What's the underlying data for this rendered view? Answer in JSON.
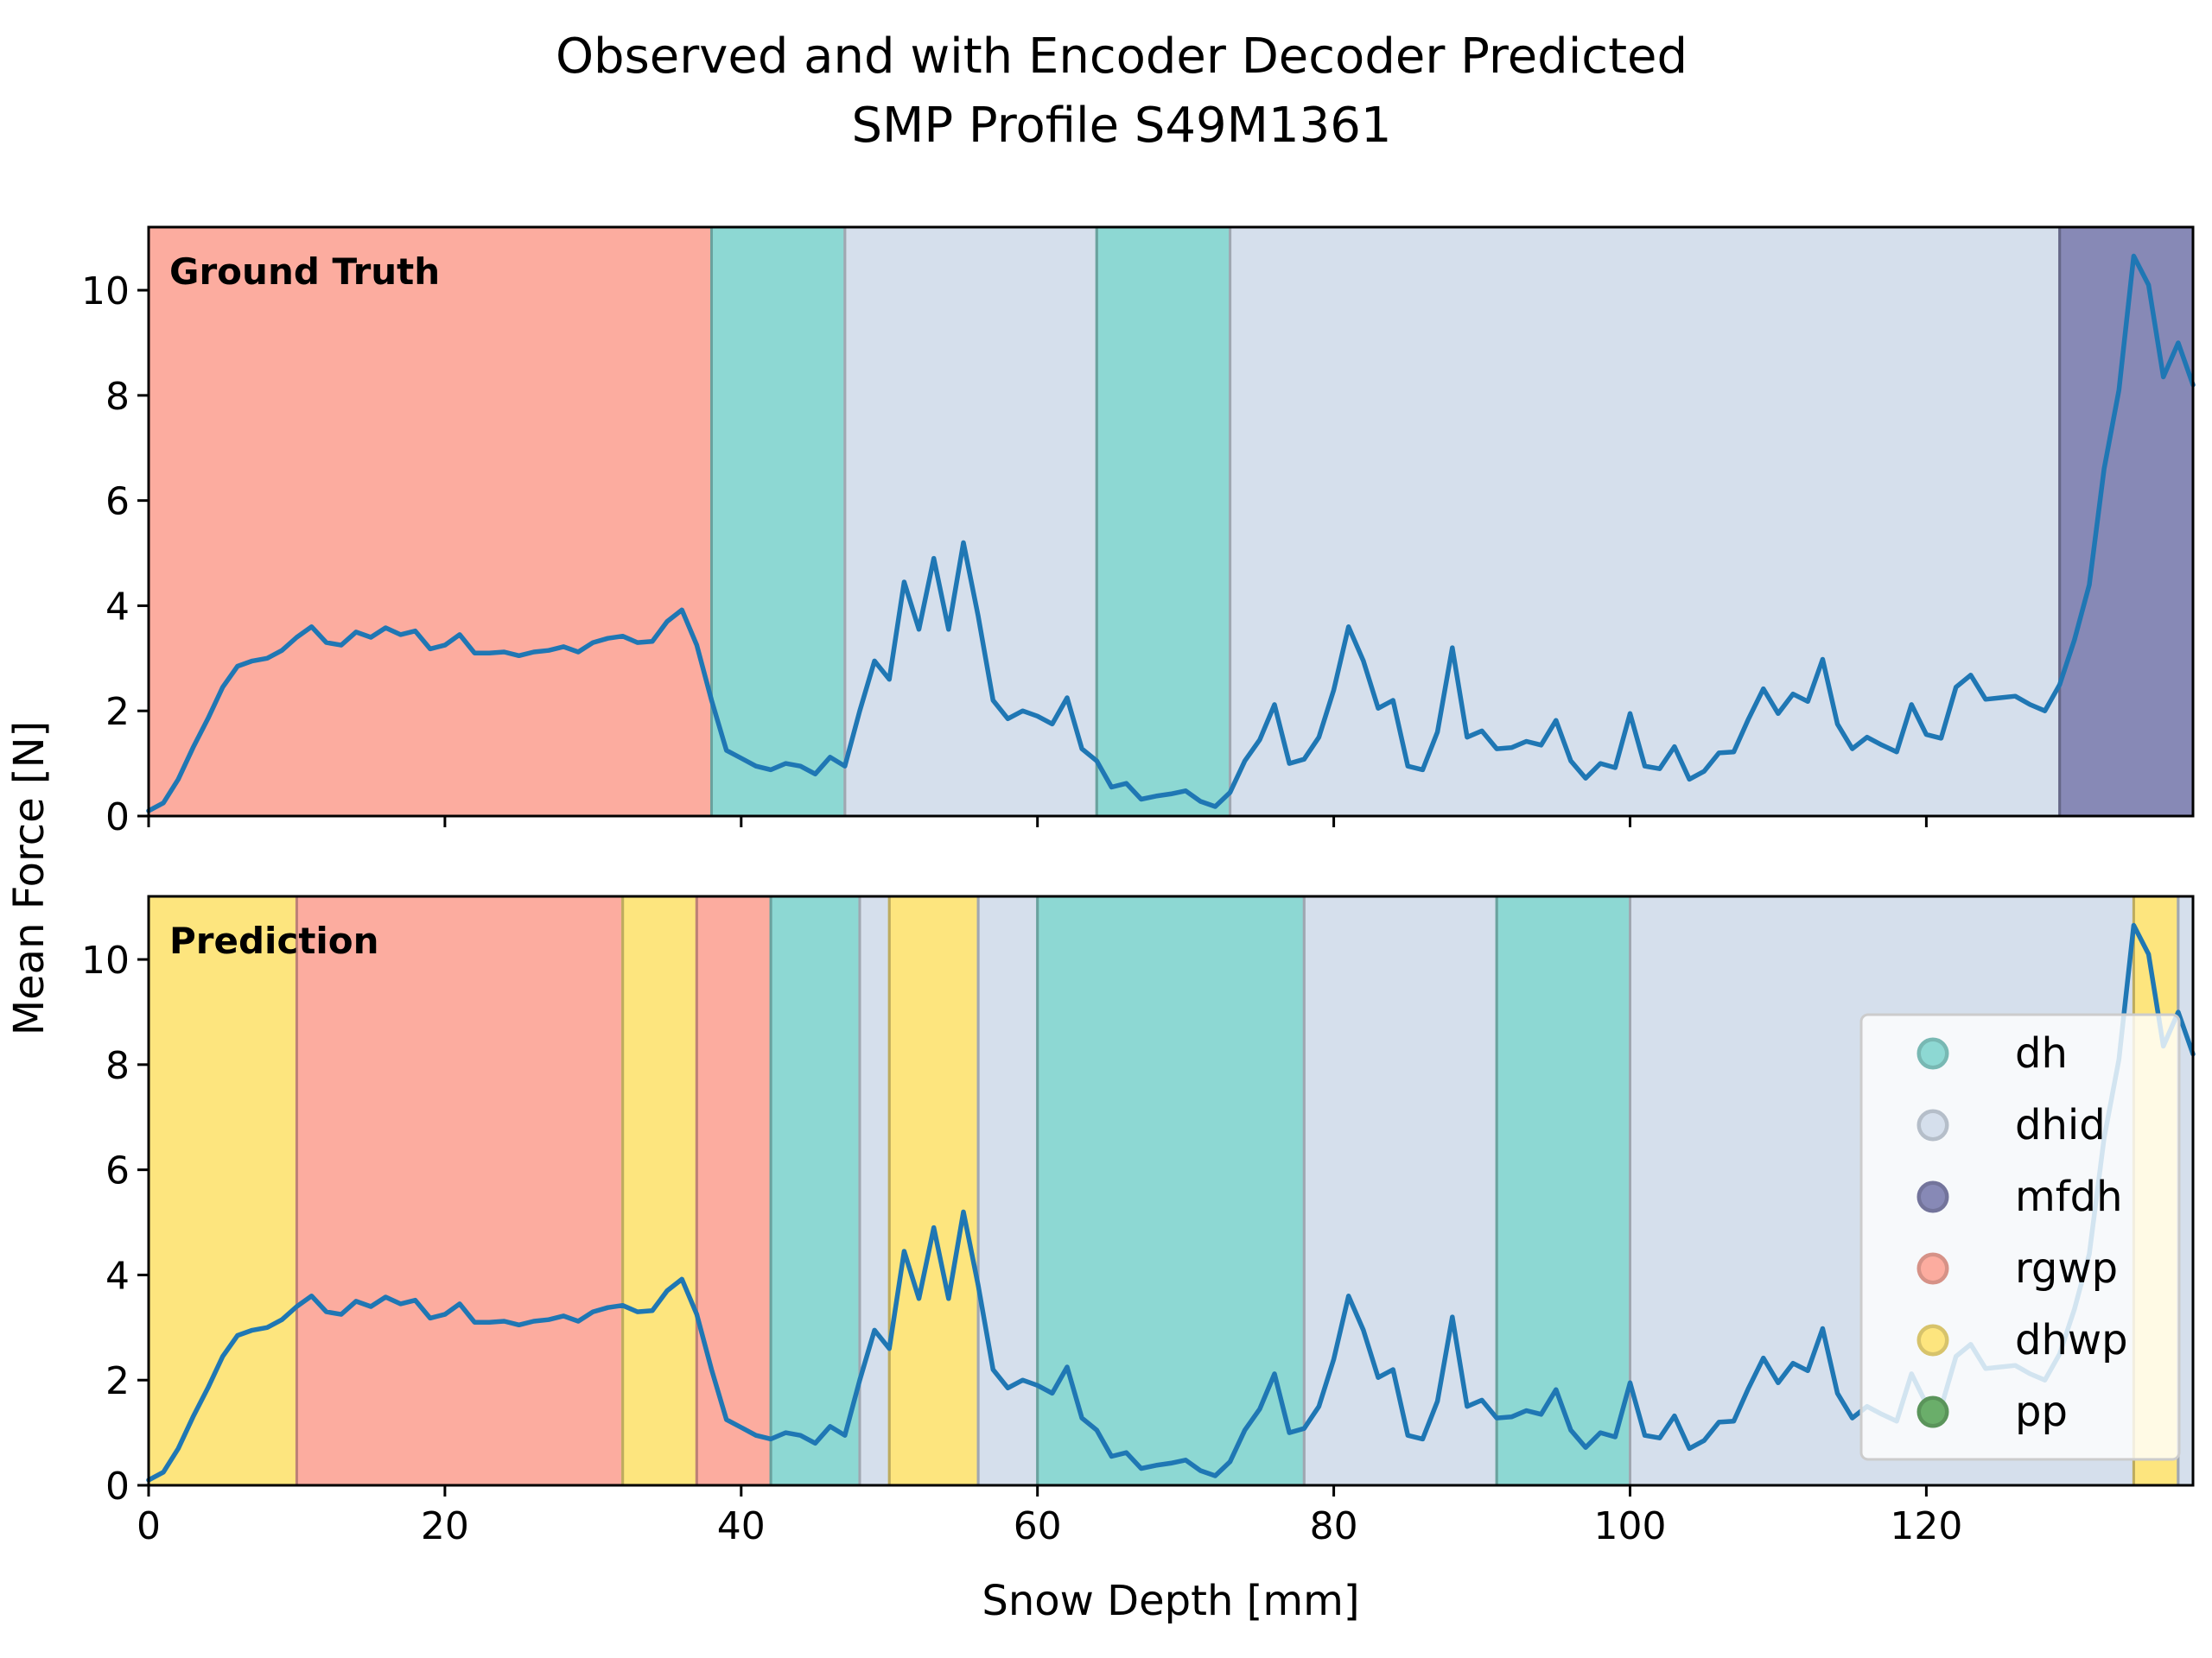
{
  "chart_data": {
    "type": "line",
    "title": "Observed and with Encoder Decoder Predicted",
    "subtitle": "SMP Profile S49M1361",
    "xlabel": "Snow Depth [mm]",
    "ylabel": "Mean Force [N]",
    "xlim": [
      0,
      138
    ],
    "ylim": [
      0,
      11.2
    ],
    "xticks": [
      0,
      20,
      40,
      60,
      80,
      100,
      120
    ],
    "yticks": [
      0,
      2,
      4,
      6,
      8,
      10
    ],
    "class_colors": {
      "dh": "#8dd8d3",
      "dhid": "#d5dfec",
      "mfdh": "#8789b6",
      "rgwp": "#fcac9f",
      "dhwp": "#fde57e",
      "pp": "#6aae6a"
    },
    "legend": {
      "placement": "lower right of Prediction panel",
      "entries": [
        {
          "label": "dh",
          "color": "#8dd8d3"
        },
        {
          "label": "dhid",
          "color": "#d5dfec"
        },
        {
          "label": "mfdh",
          "color": "#8789b6"
        },
        {
          "label": "rgwp",
          "color": "#fcac9f"
        },
        {
          "label": "dhwp",
          "color": "#fde57e"
        },
        {
          "label": "pp",
          "color": "#6aae6a"
        }
      ]
    },
    "panels": [
      {
        "label": "Ground Truth",
        "segments": [
          {
            "start": 0,
            "end": 38,
            "class": "rgwp"
          },
          {
            "start": 38,
            "end": 47,
            "class": "dh"
          },
          {
            "start": 47,
            "end": 64,
            "class": "dhid"
          },
          {
            "start": 64,
            "end": 73,
            "class": "dh"
          },
          {
            "start": 73,
            "end": 129,
            "class": "dhid"
          },
          {
            "start": 129,
            "end": 138,
            "class": "mfdh"
          }
        ]
      },
      {
        "label": "Prediction",
        "segments": [
          {
            "start": 0,
            "end": 10,
            "class": "dhwp"
          },
          {
            "start": 10,
            "end": 32,
            "class": "rgwp"
          },
          {
            "start": 32,
            "end": 37,
            "class": "dhwp"
          },
          {
            "start": 37,
            "end": 42,
            "class": "rgwp"
          },
          {
            "start": 42,
            "end": 48,
            "class": "dh"
          },
          {
            "start": 48,
            "end": 50,
            "class": "dhid"
          },
          {
            "start": 50,
            "end": 56,
            "class": "dhwp"
          },
          {
            "start": 56,
            "end": 60,
            "class": "dhid"
          },
          {
            "start": 60,
            "end": 78,
            "class": "dh"
          },
          {
            "start": 78,
            "end": 91,
            "class": "dhid"
          },
          {
            "start": 91,
            "end": 100,
            "class": "dh"
          },
          {
            "start": 100,
            "end": 134,
            "class": "dhid"
          },
          {
            "start": 134,
            "end": 137,
            "class": "dhwp"
          },
          {
            "start": 137,
            "end": 138,
            "class": "dhid"
          }
        ]
      }
    ],
    "series": [
      {
        "name": "Mean Force",
        "color": "#1f77b4",
        "x": [
          0,
          1,
          2,
          3,
          4,
          5,
          6,
          7,
          8,
          9,
          10,
          11,
          12,
          13,
          14,
          15,
          16,
          17,
          18,
          19,
          20,
          21,
          22,
          23,
          24,
          25,
          26,
          27,
          28,
          29,
          30,
          31,
          32,
          33,
          34,
          35,
          36,
          37,
          38,
          39,
          40,
          41,
          42,
          43,
          44,
          45,
          46,
          47,
          48,
          49,
          50,
          51,
          52,
          53,
          54,
          55,
          56,
          57,
          58,
          59,
          60,
          61,
          62,
          63,
          64,
          65,
          66,
          67,
          68,
          69,
          70,
          71,
          72,
          73,
          74,
          75,
          76,
          77,
          78,
          79,
          80,
          81,
          82,
          83,
          84,
          85,
          86,
          87,
          88,
          89,
          90,
          91,
          92,
          93,
          94,
          95,
          96,
          97,
          98,
          99,
          100,
          101,
          102,
          103,
          104,
          105,
          106,
          107,
          108,
          109,
          110,
          111,
          112,
          113,
          114,
          115,
          116,
          117,
          118,
          119,
          120,
          121,
          122,
          123,
          124,
          125,
          126,
          127,
          128,
          129,
          130,
          131,
          132,
          133,
          134,
          135,
          136,
          137,
          138
        ],
        "y": [
          0.1,
          0.25,
          0.7,
          1.3,
          1.85,
          2.45,
          2.85,
          2.95,
          3.0,
          3.15,
          3.4,
          3.6,
          3.3,
          3.25,
          3.5,
          3.4,
          3.58,
          3.45,
          3.52,
          3.18,
          3.25,
          3.45,
          3.1,
          3.1,
          3.12,
          3.05,
          3.12,
          3.15,
          3.22,
          3.12,
          3.3,
          3.38,
          3.42,
          3.3,
          3.32,
          3.7,
          3.92,
          3.25,
          2.2,
          1.25,
          1.1,
          0.95,
          0.88,
          1.0,
          0.95,
          0.8,
          1.12,
          0.95,
          2.0,
          2.95,
          2.6,
          4.45,
          3.55,
          4.9,
          3.55,
          5.2,
          3.8,
          2.2,
          1.85,
          2.0,
          1.9,
          1.75,
          2.25,
          1.28,
          1.05,
          0.55,
          0.62,
          0.32,
          0.38,
          0.42,
          0.48,
          0.28,
          0.18,
          0.45,
          1.05,
          1.45,
          2.12,
          1.0,
          1.08,
          1.5,
          2.4,
          3.6,
          2.95,
          2.05,
          2.2,
          0.95,
          0.88,
          1.6,
          3.2,
          1.5,
          1.62,
          1.28,
          1.3,
          1.42,
          1.35,
          1.82,
          1.05,
          0.72,
          1.0,
          0.92,
          1.95,
          0.95,
          0.9,
          1.32,
          0.7,
          0.85,
          1.2,
          1.22,
          1.85,
          2.42,
          1.95,
          2.32,
          2.18,
          2.98,
          1.75,
          1.28,
          1.5,
          1.35,
          1.22,
          2.12,
          1.55,
          1.48,
          2.45,
          2.68,
          2.22,
          2.25,
          2.28,
          2.12,
          2.0,
          2.5,
          3.35,
          4.4,
          6.6,
          8.1,
          10.65,
          10.1,
          8.35,
          9.0,
          8.2
        ]
      }
    ]
  }
}
